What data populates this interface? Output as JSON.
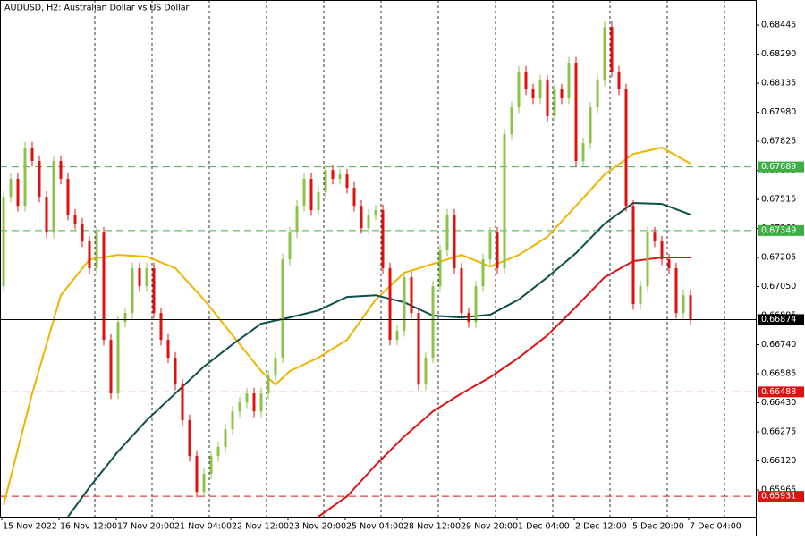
{
  "chart_data": {
    "type": "candlestick",
    "title": "AUDUSD, H2:  Australian Dollar vs US Dollar",
    "categories": [
      "15 Nov 2022",
      null,
      null,
      null,
      null,
      null,
      null,
      null,
      "16 Nov 12:00",
      null,
      null,
      null,
      null,
      null,
      null,
      null,
      "17 Nov 20:00",
      null,
      null,
      null,
      null,
      null,
      null,
      null,
      "21 Nov 04:00",
      null,
      null,
      null,
      null,
      null,
      null,
      null,
      "22 Nov 12:00",
      null,
      null,
      null,
      null,
      null,
      null,
      null,
      "23 Nov 20:00",
      null,
      null,
      null,
      null,
      null,
      null,
      null,
      "25 Nov 04:00",
      null,
      null,
      null,
      null,
      null,
      null,
      null,
      "28 Nov 12:00",
      null,
      null,
      null,
      null,
      null,
      null,
      null,
      "29 Nov 20:00",
      null,
      null,
      null,
      null,
      null,
      null,
      null,
      "1 Dec 04:00",
      null,
      null,
      null,
      null,
      null,
      null,
      null,
      "2 Dec 12:00",
      null,
      null,
      null,
      null,
      null,
      null,
      null,
      "5 Dec 20:00",
      null,
      null,
      null,
      null,
      null,
      null,
      null,
      "7 Dec 04:00"
    ],
    "ohlc": [
      [
        0.67052,
        0.67559,
        0.67022,
        0.67529
      ],
      [
        0.67529,
        0.67655,
        0.67499,
        0.67625
      ],
      [
        0.67625,
        0.67655,
        0.67451,
        0.67481
      ],
      [
        0.67481,
        0.67822,
        0.67451,
        0.67792
      ],
      [
        0.67792,
        0.67822,
        0.6769,
        0.6772
      ],
      [
        0.6772,
        0.6775,
        0.67499,
        0.67529
      ],
      [
        0.67529,
        0.67559,
        0.67308,
        0.67338
      ],
      [
        0.67338,
        0.6775,
        0.67308,
        0.6772
      ],
      [
        0.6772,
        0.6775,
        0.67595,
        0.67625
      ],
      [
        0.67625,
        0.67655,
        0.67404,
        0.67434
      ],
      [
        0.67434,
        0.67464,
        0.67356,
        0.67386
      ],
      [
        0.67386,
        0.67416,
        0.67261,
        0.67291
      ],
      [
        0.67291,
        0.67321,
        0.67118,
        0.67148
      ],
      [
        0.67148,
        0.67368,
        0.67118,
        0.67338
      ],
      [
        0.67338,
        0.67368,
        0.66736,
        0.66766
      ],
      [
        0.66766,
        0.66796,
        0.6645,
        0.6648
      ],
      [
        0.6648,
        0.66891,
        0.6645,
        0.66861
      ],
      [
        0.66861,
        0.66939,
        0.66831,
        0.66909
      ],
      [
        0.66909,
        0.67178,
        0.66879,
        0.67148
      ],
      [
        0.67148,
        0.67178,
        0.67022,
        0.67052
      ],
      [
        0.67052,
        0.67178,
        0.67022,
        0.67148
      ],
      [
        0.67148,
        0.67178,
        0.66879,
        0.66909
      ],
      [
        0.66909,
        0.66939,
        0.66736,
        0.66766
      ],
      [
        0.66766,
        0.66796,
        0.66641,
        0.66671
      ],
      [
        0.66671,
        0.66701,
        0.66497,
        0.66527
      ],
      [
        0.66527,
        0.66557,
        0.66307,
        0.66337
      ],
      [
        0.66337,
        0.66367,
        0.66116,
        0.66146
      ],
      [
        0.66146,
        0.66176,
        0.65925,
        0.65955
      ],
      [
        0.65955,
        0.66081,
        0.65925,
        0.66051
      ],
      [
        0.66051,
        0.66176,
        0.66021,
        0.66146
      ],
      [
        0.66146,
        0.66224,
        0.66116,
        0.66194
      ],
      [
        0.66194,
        0.66319,
        0.66164,
        0.66289
      ],
      [
        0.66289,
        0.66414,
        0.66259,
        0.66384
      ],
      [
        0.66384,
        0.66462,
        0.66354,
        0.66432
      ],
      [
        0.66432,
        0.6651,
        0.66402,
        0.6648
      ],
      [
        0.6648,
        0.6651,
        0.66354,
        0.66384
      ],
      [
        0.66384,
        0.6651,
        0.66354,
        0.6648
      ],
      [
        0.6648,
        0.66605,
        0.6645,
        0.66575
      ],
      [
        0.66575,
        0.66701,
        0.66545,
        0.66671
      ],
      [
        0.66671,
        0.67225,
        0.66641,
        0.67195
      ],
      [
        0.67195,
        0.67368,
        0.67165,
        0.67338
      ],
      [
        0.67338,
        0.67511,
        0.67308,
        0.67481
      ],
      [
        0.67481,
        0.67655,
        0.67451,
        0.67625
      ],
      [
        0.67625,
        0.67655,
        0.67428,
        0.67458
      ],
      [
        0.67458,
        0.67583,
        0.67428,
        0.67553
      ],
      [
        0.67553,
        0.67702,
        0.67523,
        0.67672
      ],
      [
        0.67672,
        0.67702,
        0.67595,
        0.67625
      ],
      [
        0.67625,
        0.67678,
        0.67595,
        0.67648
      ],
      [
        0.67648,
        0.67678,
        0.67547,
        0.67577
      ],
      [
        0.67577,
        0.67607,
        0.67451,
        0.67481
      ],
      [
        0.67481,
        0.67511,
        0.67332,
        0.67362
      ],
      [
        0.67362,
        0.67464,
        0.67332,
        0.67434
      ],
      [
        0.67434,
        0.67488,
        0.67404,
        0.67458
      ],
      [
        0.67458,
        0.67488,
        0.67118,
        0.67148
      ],
      [
        0.67148,
        0.67178,
        0.66736,
        0.66766
      ],
      [
        0.66766,
        0.66844,
        0.66736,
        0.66814
      ],
      [
        0.66814,
        0.6713,
        0.66784,
        0.671
      ],
      [
        0.671,
        0.6713,
        0.66879,
        0.66909
      ],
      [
        0.66909,
        0.66939,
        0.66497,
        0.66527
      ],
      [
        0.66527,
        0.66701,
        0.66497,
        0.66671
      ],
      [
        0.66671,
        0.67082,
        0.66641,
        0.67052
      ],
      [
        0.67052,
        0.67273,
        0.67022,
        0.67243
      ],
      [
        0.67243,
        0.67464,
        0.67213,
        0.67434
      ],
      [
        0.67434,
        0.67464,
        0.67118,
        0.67148
      ],
      [
        0.67148,
        0.67178,
        0.66879,
        0.66909
      ],
      [
        0.66909,
        0.66939,
        0.66831,
        0.66861
      ],
      [
        0.66861,
        0.67082,
        0.66831,
        0.67052
      ],
      [
        0.67052,
        0.67225,
        0.67022,
        0.67195
      ],
      [
        0.67195,
        0.67368,
        0.67165,
        0.67338
      ],
      [
        0.67338,
        0.67368,
        0.67118,
        0.67148
      ],
      [
        0.67148,
        0.67893,
        0.67118,
        0.67863
      ],
      [
        0.67863,
        0.68036,
        0.67833,
        0.68006
      ],
      [
        0.68006,
        0.68227,
        0.67976,
        0.68197
      ],
      [
        0.68197,
        0.68227,
        0.68072,
        0.68102
      ],
      [
        0.68102,
        0.68132,
        0.68024,
        0.68054
      ],
      [
        0.68054,
        0.68179,
        0.68024,
        0.68149
      ],
      [
        0.68149,
        0.68179,
        0.67929,
        0.67959
      ],
      [
        0.67959,
        0.68132,
        0.67929,
        0.68102
      ],
      [
        0.68102,
        0.68132,
        0.68024,
        0.68054
      ],
      [
        0.68054,
        0.68275,
        0.68024,
        0.68245
      ],
      [
        0.68245,
        0.68275,
        0.6769,
        0.6772
      ],
      [
        0.6772,
        0.67845,
        0.6769,
        0.67815
      ],
      [
        0.67815,
        0.68036,
        0.67785,
        0.68006
      ],
      [
        0.68006,
        0.68179,
        0.67976,
        0.68149
      ],
      [
        0.68149,
        0.68465,
        0.68119,
        0.68435
      ],
      [
        0.68435,
        0.68465,
        0.68167,
        0.68197
      ],
      [
        0.68197,
        0.68227,
        0.68072,
        0.68102
      ],
      [
        0.68102,
        0.68132,
        0.67451,
        0.67481
      ],
      [
        0.67481,
        0.67511,
        0.66927,
        0.66957
      ],
      [
        0.66957,
        0.67082,
        0.66927,
        0.67052
      ],
      [
        0.67052,
        0.67368,
        0.67022,
        0.67338
      ],
      [
        0.67338,
        0.67368,
        0.67261,
        0.67291
      ],
      [
        0.67291,
        0.67321,
        0.67165,
        0.67195
      ],
      [
        0.67195,
        0.67225,
        0.67118,
        0.67148
      ],
      [
        0.67148,
        0.67178,
        0.66879,
        0.66909
      ],
      [
        0.66909,
        0.67034,
        0.66879,
        0.67004
      ],
      [
        0.67004,
        0.67034,
        0.66844,
        0.66874
      ]
    ],
    "bull_color": "#8bc34a",
    "bear_color": "#e01010",
    "series": [
      {
        "color": "#f0b400",
        "x": [
          0,
          4,
          8,
          12,
          16,
          20,
          24,
          28,
          32,
          36,
          38,
          40,
          44,
          48,
          52,
          56,
          60,
          64,
          68,
          72,
          76,
          80,
          84,
          88,
          92,
          96
        ],
        "values": [
          0.65884,
          0.6648,
          0.67004,
          0.67195,
          0.67219,
          0.6721,
          0.67148,
          0.66981,
          0.6679,
          0.66599,
          0.66527,
          0.66599,
          0.66671,
          0.66766,
          0.66981,
          0.67124,
          0.67171,
          0.67219,
          0.67157,
          0.67219,
          0.67315,
          0.67481,
          0.67648,
          0.67758,
          0.67792,
          0.67706
        ]
      },
      {
        "color": "#0d4f4a",
        "x": [
          9,
          12,
          16,
          20,
          24,
          28,
          32,
          36,
          40,
          44,
          48,
          52,
          56,
          60,
          64,
          68,
          72,
          76,
          80,
          84,
          88,
          92,
          96
        ],
        "values": [
          0.65822,
          0.65979,
          0.6617,
          0.66337,
          0.6648,
          0.66623,
          0.66742,
          0.66852,
          0.66885,
          0.66923,
          0.66995,
          0.67004,
          0.66966,
          0.66895,
          0.66885,
          0.669,
          0.66981,
          0.671,
          0.67229,
          0.67386,
          0.67496,
          0.67491,
          0.67434
        ]
      },
      {
        "color": "#dd1111",
        "x": [
          44,
          48,
          52,
          56,
          60,
          64,
          68,
          72,
          76,
          80,
          84,
          88,
          92,
          96
        ],
        "values": [
          0.65822,
          0.65931,
          0.66098,
          0.66251,
          0.66384,
          0.6648,
          0.66566,
          0.66671,
          0.6679,
          0.66942,
          0.671,
          0.67186,
          0.67205,
          0.67205
        ]
      }
    ],
    "levels": [
      {
        "value": 0.67689,
        "color": "#3cb043"
      },
      {
        "value": 0.67349,
        "color": "#3cb043"
      },
      {
        "value": 0.66488,
        "color": "#e01010"
      },
      {
        "value": 0.65931,
        "color": "#e01010"
      }
    ],
    "current_price": 0.66874,
    "ylim": [
      0.65822,
      0.68579
    ],
    "yticks": [
      0.68445,
      {
        "value": 0.6829,
        "label": "0.68290"
      },
      0.68135,
      {
        "value": 0.6798,
        "label": "0.67980"
      },
      0.67825,
      {
        "value": 0.6767,
        "label": "0.67670"
      },
      0.67515,
      {
        "value": 0.6736,
        "label": "0.67360"
      },
      0.67205,
      {
        "value": 0.6705,
        "label": "0.67050"
      },
      0.66895,
      {
        "value": 0.6674,
        "label": "0.66740"
      },
      0.66585,
      {
        "value": 0.6643,
        "label": "0.66430"
      },
      0.66275,
      {
        "value": 0.6612,
        "label": "0.66120"
      },
      0.65965
    ]
  }
}
